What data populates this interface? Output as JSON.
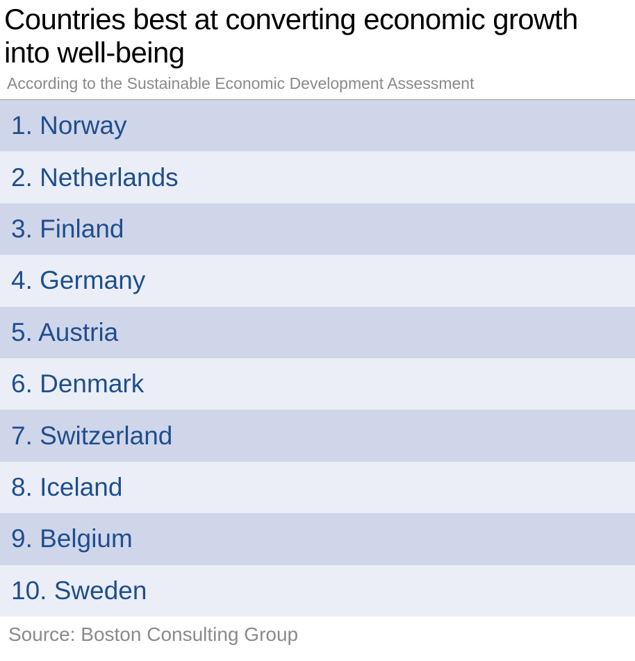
{
  "chart_data": {
    "type": "table",
    "title": "Countries best at converting economic growth into well-being",
    "subtitle": "According to the Sustainable Economic Development Assessment",
    "rows": [
      {
        "rank": 1,
        "country": "Norway",
        "label": "1. Norway"
      },
      {
        "rank": 2,
        "country": "Netherlands",
        "label": "2. Netherlands"
      },
      {
        "rank": 3,
        "country": "Finland",
        "label": "3. Finland"
      },
      {
        "rank": 4,
        "country": "Germany",
        "label": "4. Germany"
      },
      {
        "rank": 5,
        "country": "Austria",
        "label": "5. Austria"
      },
      {
        "rank": 6,
        "country": "Denmark",
        "label": "6. Denmark"
      },
      {
        "rank": 7,
        "country": "Switzerland",
        "label": "7. Switzerland"
      },
      {
        "rank": 8,
        "country": "Iceland",
        "label": "8. Iceland"
      },
      {
        "rank": 9,
        "country": "Belgium",
        "label": "9. Belgium"
      },
      {
        "rank": 10,
        "country": "Sweden",
        "label": "10. Sweden"
      }
    ],
    "source": "Source: Boston Consulting Group"
  },
  "colors": {
    "row_shade": "#d0d6ea",
    "row_light": "#ebeef7",
    "text_blue": "#1f4e8f",
    "text_gray": "#8a8a8a"
  }
}
